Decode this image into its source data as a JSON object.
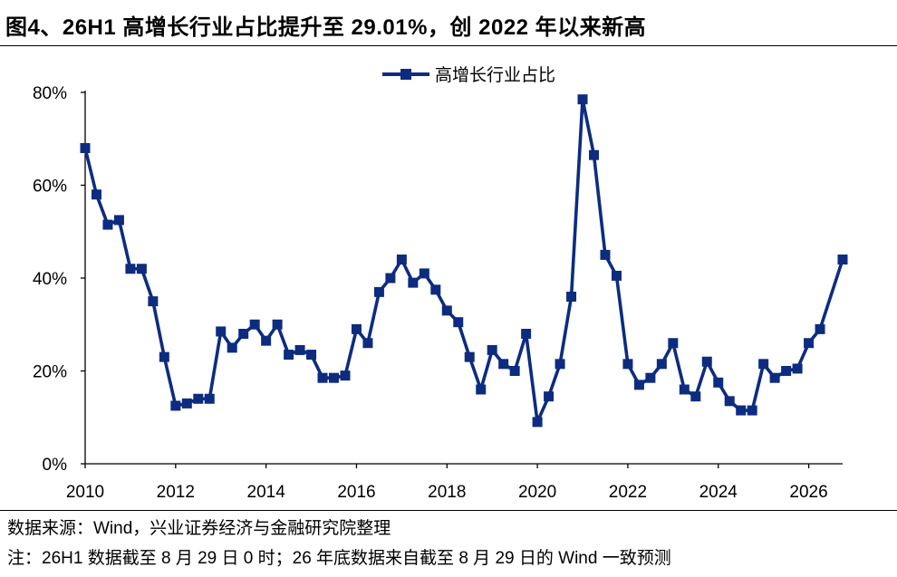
{
  "title": "图4、26H1 高增长行业占比提升至 29.01%，创 2022 年以来新高",
  "source_note": "数据来源：Wind，兴业证券经济与金融研究院整理",
  "footnote": "注：26H1 数据截至 8 月 29 日 0 时；26 年底数据来自截至 8 月 29 日的 Wind 一致预测",
  "colors": {
    "series": "#0d2c80",
    "axis": "#000000"
  },
  "chart_data": {
    "type": "line",
    "title": "图4、26H1 高增长行业占比提升至 29.01%，创 2022 年以来新高",
    "xlabel": "",
    "ylabel": "",
    "xlim": [
      2010,
      2026.75
    ],
    "ylim": [
      0,
      80
    ],
    "x_ticks": [
      "2010",
      "2012",
      "2014",
      "2016",
      "2018",
      "2020",
      "2022",
      "2024",
      "2026"
    ],
    "y_ticks": [
      "0%",
      "20%",
      "40%",
      "60%",
      "80%"
    ],
    "legend": {
      "position": "top-center",
      "entries": [
        "高增长行业占比"
      ]
    },
    "grid": false,
    "series": [
      {
        "name": "高增长行业占比",
        "marker": "square",
        "solid_until_index": 67,
        "points": [
          [
            2010.0,
            68
          ],
          [
            2010.25,
            58
          ],
          [
            2010.5,
            51.5
          ],
          [
            2010.75,
            52.5
          ],
          [
            2011.0,
            42
          ],
          [
            2011.25,
            42
          ],
          [
            2011.5,
            35
          ],
          [
            2011.75,
            23
          ],
          [
            2012.0,
            12.5
          ],
          [
            2012.25,
            13
          ],
          [
            2012.5,
            14
          ],
          [
            2012.75,
            14
          ],
          [
            2013.0,
            28.5
          ],
          [
            2013.25,
            25
          ],
          [
            2013.5,
            28
          ],
          [
            2013.75,
            30
          ],
          [
            2014.0,
            26.5
          ],
          [
            2014.25,
            30
          ],
          [
            2014.5,
            23.5
          ],
          [
            2014.75,
            24.5
          ],
          [
            2015.0,
            23.5
          ],
          [
            2015.25,
            18.5
          ],
          [
            2015.5,
            18.5
          ],
          [
            2015.75,
            19
          ],
          [
            2016.0,
            29
          ],
          [
            2016.25,
            26
          ],
          [
            2016.5,
            37
          ],
          [
            2016.75,
            40
          ],
          [
            2017.0,
            44
          ],
          [
            2017.25,
            39
          ],
          [
            2017.5,
            41
          ],
          [
            2017.75,
            37.5
          ],
          [
            2018.0,
            33
          ],
          [
            2018.25,
            30.5
          ],
          [
            2018.5,
            23
          ],
          [
            2018.75,
            16
          ],
          [
            2019.0,
            24.5
          ],
          [
            2019.25,
            21.5
          ],
          [
            2019.5,
            20
          ],
          [
            2019.75,
            28
          ],
          [
            2020.0,
            9
          ],
          [
            2020.25,
            14.5
          ],
          [
            2020.5,
            21.5
          ],
          [
            2020.75,
            36
          ],
          [
            2021.0,
            78.5
          ],
          [
            2021.25,
            66.5
          ],
          [
            2021.5,
            45
          ],
          [
            2021.75,
            40.5
          ],
          [
            2022.0,
            21.5
          ],
          [
            2022.25,
            17
          ],
          [
            2022.5,
            18.5
          ],
          [
            2022.75,
            21.5
          ],
          [
            2023.0,
            26
          ],
          [
            2023.25,
            16
          ],
          [
            2023.5,
            14.5
          ],
          [
            2023.75,
            22
          ],
          [
            2024.0,
            17.5
          ],
          [
            2024.25,
            13.5
          ],
          [
            2024.5,
            11.5
          ],
          [
            2024.75,
            11.5
          ],
          [
            2025.0,
            21.5
          ],
          [
            2025.25,
            18.5
          ],
          [
            2025.5,
            20
          ],
          [
            2025.75,
            20.5
          ],
          [
            2026.0,
            26
          ],
          [
            2026.25,
            29
          ],
          [
            2026.75,
            44
          ]
        ]
      }
    ]
  }
}
